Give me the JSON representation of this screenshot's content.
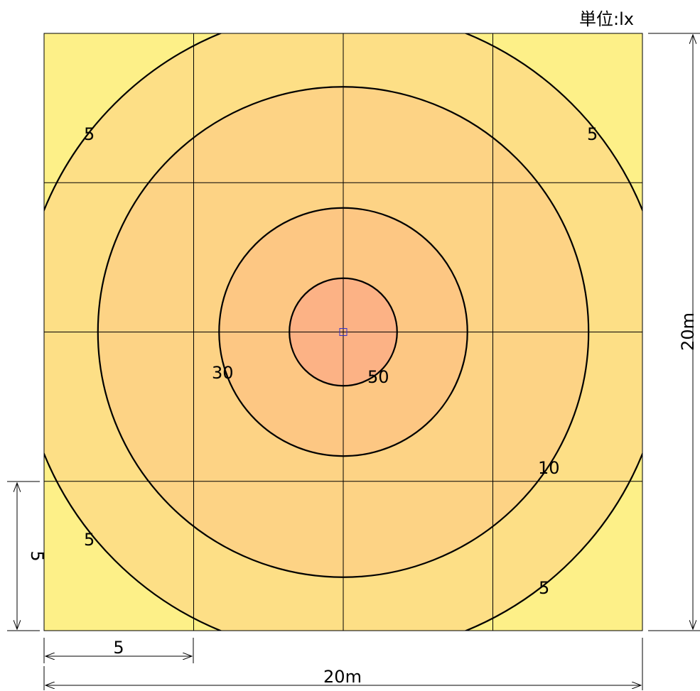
{
  "unit_label": "単位:lx",
  "dimensions": {
    "width_label": "20m",
    "height_label": "20m",
    "grid_width_label": "5",
    "grid_height_label": "5"
  },
  "chart_data": {
    "type": "contour",
    "title": "",
    "unit": "lx",
    "area_m": [
      20,
      20
    ],
    "grid_spacing_m": 5,
    "source_position_m": [
      10,
      10
    ],
    "levels": [
      {
        "value": 5,
        "radius_m": 10.8,
        "color": "#FDDF86"
      },
      {
        "value": 10,
        "radius_m": 8.2,
        "color": "#FDD385"
      },
      {
        "value": 30,
        "radius_m": 4.15,
        "color": "#FDC783"
      },
      {
        "value": 50,
        "radius_m": 1.8,
        "color": "#FCB285"
      }
    ],
    "background_color": "#FDF088",
    "contour_labels": [
      {
        "text": "5",
        "value": 5
      },
      {
        "text": "5",
        "value": 5
      },
      {
        "text": "5",
        "value": 5
      },
      {
        "text": "5",
        "value": 5
      },
      {
        "text": "10",
        "value": 10
      },
      {
        "text": "30",
        "value": 30
      },
      {
        "text": "50",
        "value": 50
      }
    ]
  }
}
